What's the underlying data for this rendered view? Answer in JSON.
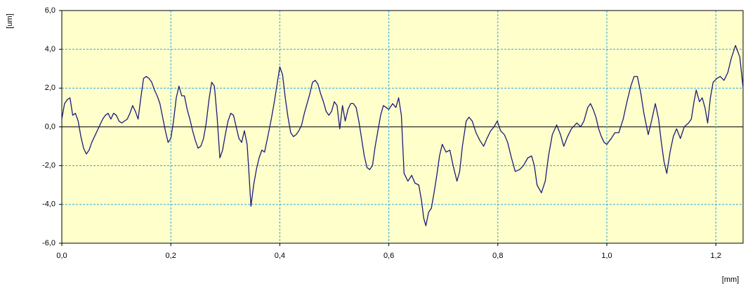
{
  "chart_data": {
    "type": "line",
    "ylabel": "[um]",
    "xlabel": "[mm]",
    "color": "#1c1c78",
    "background": "#ffffcc",
    "grid": true,
    "grid_color": "#2aa7e0",
    "xlim": [
      0,
      1.25
    ],
    "ylim": [
      -6,
      6
    ],
    "xticks": [
      {
        "value": 0,
        "label": "0,0"
      },
      {
        "value": 0.2,
        "label": "0,2"
      },
      {
        "value": 0.4,
        "label": "0,4"
      },
      {
        "value": 0.6,
        "label": "0,6"
      },
      {
        "value": 0.8,
        "label": "0,8"
      },
      {
        "value": 1.0,
        "label": "1,0"
      },
      {
        "value": 1.2,
        "label": "1,2"
      }
    ],
    "yticks": [
      {
        "value": 6,
        "label": "6,0"
      },
      {
        "value": 4,
        "label": "4,0"
      },
      {
        "value": 2,
        "label": "2,0"
      },
      {
        "value": 0,
        "label": "0,0"
      },
      {
        "value": -2,
        "label": "-2,0"
      },
      {
        "value": -4,
        "label": "-4,0"
      },
      {
        "value": -6,
        "label": "-6,0"
      }
    ],
    "x": [
      0,
      0.005,
      0.01,
      0.015,
      0.02,
      0.025,
      0.03,
      0.035,
      0.04,
      0.045,
      0.05,
      0.055,
      0.06,
      0.065,
      0.07,
      0.075,
      0.08,
      0.085,
      0.09,
      0.095,
      0.1,
      0.105,
      0.11,
      0.115,
      0.12,
      0.125,
      0.13,
      0.135,
      0.14,
      0.145,
      0.15,
      0.155,
      0.16,
      0.165,
      0.17,
      0.175,
      0.18,
      0.185,
      0.19,
      0.195,
      0.2,
      0.205,
      0.21,
      0.215,
      0.22,
      0.225,
      0.23,
      0.235,
      0.24,
      0.245,
      0.25,
      0.255,
      0.26,
      0.265,
      0.27,
      0.275,
      0.28,
      0.285,
      0.29,
      0.295,
      0.3,
      0.305,
      0.31,
      0.315,
      0.32,
      0.325,
      0.33,
      0.335,
      0.34,
      0.343,
      0.347,
      0.352,
      0.357,
      0.362,
      0.367,
      0.372,
      0.378,
      0.385,
      0.39,
      0.395,
      0.4,
      0.405,
      0.41,
      0.415,
      0.42,
      0.425,
      0.43,
      0.435,
      0.44,
      0.445,
      0.45,
      0.455,
      0.46,
      0.465,
      0.47,
      0.475,
      0.48,
      0.485,
      0.49,
      0.495,
      0.5,
      0.505,
      0.51,
      0.515,
      0.52,
      0.525,
      0.53,
      0.535,
      0.54,
      0.545,
      0.55,
      0.555,
      0.56,
      0.565,
      0.57,
      0.575,
      0.58,
      0.585,
      0.59,
      0.595,
      0.6,
      0.607,
      0.613,
      0.618,
      0.623,
      0.628,
      0.635,
      0.642,
      0.648,
      0.655,
      0.66,
      0.664,
      0.668,
      0.673,
      0.678,
      0.683,
      0.688,
      0.693,
      0.698,
      0.705,
      0.712,
      0.718,
      0.725,
      0.73,
      0.735,
      0.742,
      0.747,
      0.753,
      0.76,
      0.767,
      0.774,
      0.78,
      0.787,
      0.793,
      0.799,
      0.805,
      0.812,
      0.818,
      0.825,
      0.832,
      0.84,
      0.847,
      0.855,
      0.862,
      0.867,
      0.872,
      0.88,
      0.887,
      0.893,
      0.9,
      0.908,
      0.915,
      0.921,
      0.928,
      0.935,
      0.945,
      0.952,
      0.958,
      0.965,
      0.97,
      0.975,
      0.98,
      0.985,
      0.99,
      0.995,
      1.0,
      1.008,
      1.015,
      1.022,
      1.03,
      1.037,
      1.044,
      1.05,
      1.056,
      1.062,
      1.068,
      1.076,
      1.082,
      1.089,
      1.095,
      1.1,
      1.105,
      1.11,
      1.116,
      1.122,
      1.128,
      1.135,
      1.142,
      1.15,
      1.155,
      1.16,
      1.164,
      1.17,
      1.175,
      1.18,
      1.185,
      1.19,
      1.195,
      1.202,
      1.208,
      1.215,
      1.222,
      1.228,
      1.236,
      1.244,
      1.25
    ],
    "values": [
      0.4,
      1.2,
      1.4,
      1.5,
      0.6,
      0.7,
      0.3,
      -0.5,
      -1.1,
      -1.4,
      -1.2,
      -0.8,
      -0.5,
      -0.2,
      0.1,
      0.4,
      0.6,
      0.7,
      0.4,
      0.7,
      0.6,
      0.3,
      0.2,
      0.3,
      0.4,
      0.7,
      1.1,
      0.8,
      0.4,
      1.5,
      2.5,
      2.6,
      2.5,
      2.3,
      1.9,
      1.6,
      1.2,
      0.5,
      -0.2,
      -0.8,
      -0.6,
      0.3,
      1.5,
      2.1,
      1.6,
      1.6,
      0.9,
      0.4,
      -0.2,
      -0.7,
      -1.1,
      -1.0,
      -0.6,
      0.2,
      1.4,
      2.3,
      2.1,
      0.5,
      -1.6,
      -1.2,
      -0.4,
      0.3,
      0.7,
      0.6,
      0.0,
      -0.6,
      -0.8,
      -0.2,
      -0.9,
      -2.2,
      -4.1,
      -3.0,
      -2.2,
      -1.6,
      -1.2,
      -1.3,
      -0.5,
      0.5,
      1.3,
      2.2,
      3.1,
      2.7,
      1.5,
      0.5,
      -0.3,
      -0.5,
      -0.4,
      -0.2,
      0.1,
      0.7,
      1.2,
      1.7,
      2.3,
      2.4,
      2.2,
      1.7,
      1.3,
      0.8,
      0.6,
      0.8,
      1.3,
      1.1,
      -0.1,
      1.1,
      0.3,
      0.9,
      1.2,
      1.2,
      1.0,
      0.3,
      -0.6,
      -1.5,
      -2.1,
      -2.2,
      -2.0,
      -1.0,
      -0.2,
      0.6,
      1.1,
      1.0,
      0.9,
      1.2,
      1.0,
      1.5,
      0.6,
      -2.4,
      -2.8,
      -2.5,
      -2.9,
      -3.0,
      -3.8,
      -4.7,
      -5.1,
      -4.4,
      -4.2,
      -3.4,
      -2.5,
      -1.5,
      -0.9,
      -1.3,
      -1.2,
      -2.0,
      -2.8,
      -2.3,
      -1.0,
      0.3,
      0.5,
      0.3,
      -0.3,
      -0.7,
      -1.0,
      -0.6,
      -0.2,
      0.0,
      0.3,
      -0.2,
      -0.4,
      -0.8,
      -1.6,
      -2.3,
      -2.2,
      -2.0,
      -1.6,
      -1.5,
      -2.0,
      -3.0,
      -3.4,
      -2.8,
      -1.5,
      -0.4,
      0.1,
      -0.4,
      -1.0,
      -0.5,
      -0.1,
      0.2,
      0.0,
      0.3,
      1.0,
      1.2,
      0.9,
      0.5,
      -0.1,
      -0.5,
      -0.8,
      -0.9,
      -0.6,
      -0.3,
      -0.3,
      0.4,
      1.3,
      2.1,
      2.6,
      2.6,
      1.8,
      0.7,
      -0.4,
      0.3,
      1.2,
      0.4,
      -0.8,
      -1.8,
      -2.4,
      -1.3,
      -0.5,
      -0.1,
      -0.6,
      0.0,
      0.2,
      0.4,
      1.3,
      1.9,
      1.3,
      1.5,
      1.0,
      0.2,
      1.5,
      2.3,
      2.5,
      2.6,
      2.4,
      2.8,
      3.5,
      4.2,
      3.6,
      2.0
    ]
  }
}
